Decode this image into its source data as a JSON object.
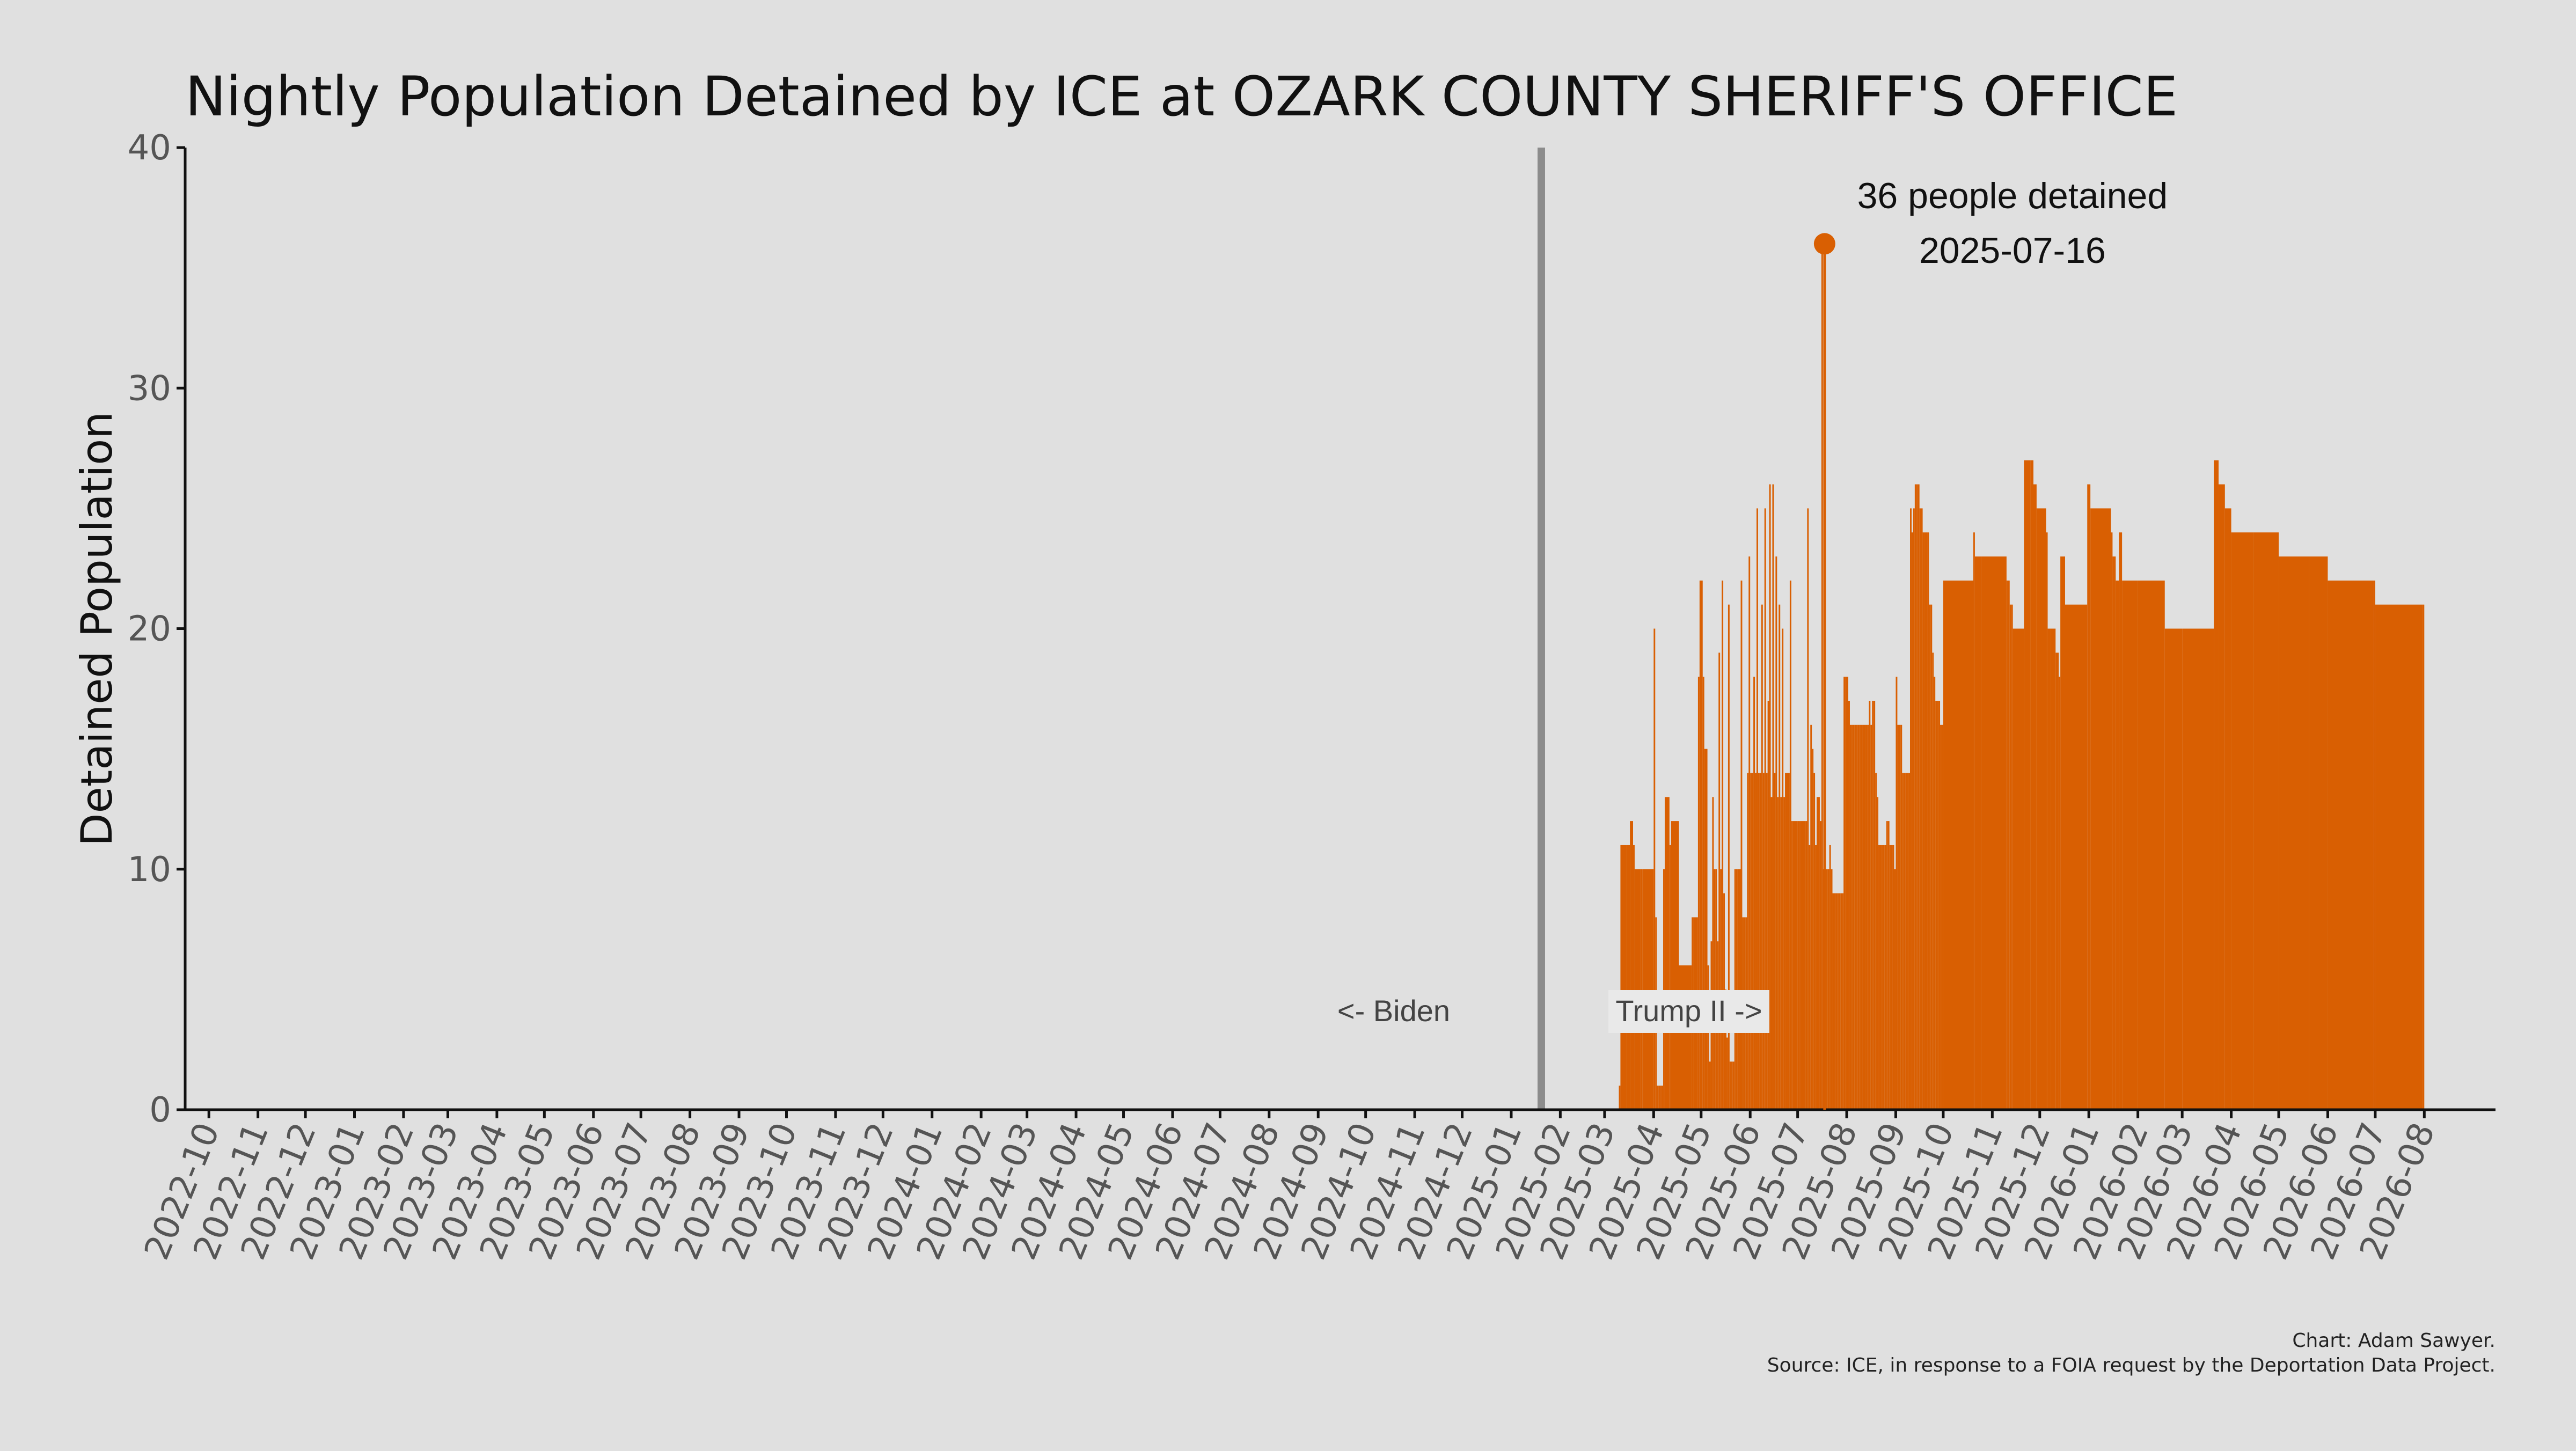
{
  "chart_data": {
    "type": "bar",
    "title": "Nightly Population Detained by ICE at OZARK COUNTY SHERIFF'S OFFICE",
    "xlabel": "",
    "ylabel": "Detained Population",
    "ylim": [
      0,
      40
    ],
    "y_ticks": [
      "0",
      "10",
      "20",
      "30",
      "40"
    ],
    "x_ticks": [
      "2022-10",
      "2022-11",
      "2022-12",
      "2023-01",
      "2023-02",
      "2023-03",
      "2023-04",
      "2023-05",
      "2023-06",
      "2023-07",
      "2023-08",
      "2023-09",
      "2023-10",
      "2023-11",
      "2023-12",
      "2024-01",
      "2024-02",
      "2024-03",
      "2024-04",
      "2024-05",
      "2024-06",
      "2024-07",
      "2024-08",
      "2024-09",
      "2024-10",
      "2024-11",
      "2024-12",
      "2025-01",
      "2025-02",
      "2025-03",
      "2025-04",
      "2025-05",
      "2025-06",
      "2025-07",
      "2025-08",
      "2025-09",
      "2025-10",
      "2025-11",
      "2025-12",
      "2026-01",
      "2026-02",
      "2026-03",
      "2026-04",
      "2026-05",
      "2026-06",
      "2026-07",
      "2026-08"
    ],
    "x_range": [
      "2022-10-01",
      "2026-08-31"
    ],
    "grid": false,
    "bar_color": "#d95f02",
    "divider": {
      "date": "2025-01-20",
      "color": "#8c8c8c",
      "left_label": "<- Biden",
      "right_label": "Trump II ->"
    },
    "peak": {
      "date": "2025-07-16",
      "value": 36,
      "label_line1": "36 people detained",
      "label_line2": "2025-07-16"
    },
    "series": [
      {
        "points": [
          [
            "2025-03-10",
            1
          ],
          [
            "2025-03-11",
            11
          ],
          [
            "2025-03-15",
            11
          ],
          [
            "2025-03-17",
            12
          ],
          [
            "2025-03-19",
            11
          ],
          [
            "2025-03-20",
            10
          ],
          [
            "2025-03-24",
            10
          ],
          [
            "2025-03-25",
            10
          ],
          [
            "2025-04-01",
            20
          ],
          [
            "2025-04-02",
            8
          ],
          [
            "2025-04-03",
            1
          ],
          [
            "2025-04-04",
            1
          ],
          [
            "2025-04-05",
            1
          ],
          [
            "2025-04-06",
            1
          ],
          [
            "2025-04-07",
            10
          ],
          [
            "2025-04-08",
            13
          ],
          [
            "2025-04-11",
            11
          ],
          [
            "2025-04-12",
            12
          ],
          [
            "2025-04-17",
            6
          ],
          [
            "2025-04-25",
            8
          ],
          [
            "2025-04-26",
            8
          ],
          [
            "2025-04-29",
            18
          ],
          [
            "2025-04-30",
            22
          ],
          [
            "2025-05-02",
            18
          ],
          [
            "2025-05-03",
            15
          ],
          [
            "2025-05-05",
            6
          ],
          [
            "2025-05-06",
            2
          ],
          [
            "2025-05-07",
            7
          ],
          [
            "2025-05-08",
            13
          ],
          [
            "2025-05-09",
            10
          ],
          [
            "2025-05-10",
            10
          ],
          [
            "2025-05-11",
            7
          ],
          [
            "2025-05-12",
            19
          ],
          [
            "2025-05-13",
            10
          ],
          [
            "2025-05-14",
            22
          ],
          [
            "2025-05-15",
            9
          ],
          [
            "2025-05-16",
            5
          ],
          [
            "2025-05-17",
            3
          ],
          [
            "2025-05-18",
            21
          ],
          [
            "2025-05-19",
            2
          ],
          [
            "2025-05-20",
            2
          ],
          [
            "2025-05-21",
            2
          ],
          [
            "2025-05-22",
            10
          ],
          [
            "2025-05-23",
            10
          ],
          [
            "2025-05-24",
            10
          ],
          [
            "2025-05-25",
            10
          ],
          [
            "2025-05-26",
            22
          ],
          [
            "2025-05-27",
            8
          ],
          [
            "2025-05-28",
            8
          ],
          [
            "2025-05-29",
            8
          ],
          [
            "2025-05-30",
            14
          ],
          [
            "2025-05-31",
            23
          ],
          [
            "2025-06-01",
            14
          ],
          [
            "2025-06-02",
            14
          ],
          [
            "2025-06-03",
            18
          ],
          [
            "2025-06-04",
            14
          ],
          [
            "2025-06-05",
            25
          ],
          [
            "2025-06-06",
            14
          ],
          [
            "2025-06-07",
            14
          ],
          [
            "2025-06-08",
            21
          ],
          [
            "2025-06-09",
            14
          ],
          [
            "2025-06-10",
            25
          ],
          [
            "2025-06-11",
            14
          ],
          [
            "2025-06-12",
            17
          ],
          [
            "2025-06-13",
            26
          ],
          [
            "2025-06-14",
            13
          ],
          [
            "2025-06-15",
            26
          ],
          [
            "2025-06-16",
            14
          ],
          [
            "2025-06-17",
            23
          ],
          [
            "2025-06-18",
            13
          ],
          [
            "2025-06-19",
            21
          ],
          [
            "2025-06-20",
            13
          ],
          [
            "2025-06-21",
            20
          ],
          [
            "2025-06-22",
            13
          ],
          [
            "2025-06-23",
            14
          ],
          [
            "2025-06-24",
            14
          ],
          [
            "2025-06-25",
            14
          ],
          [
            "2025-06-26",
            22
          ],
          [
            "2025-06-27",
            12
          ],
          [
            "2025-06-28",
            12
          ],
          [
            "2025-07-01",
            12
          ],
          [
            "2025-07-02",
            12
          ],
          [
            "2025-07-03",
            12
          ],
          [
            "2025-07-04",
            12
          ],
          [
            "2025-07-05",
            12
          ],
          [
            "2025-07-06",
            12
          ],
          [
            "2025-07-07",
            25
          ],
          [
            "2025-07-08",
            11
          ],
          [
            "2025-07-09",
            16
          ],
          [
            "2025-07-10",
            15
          ],
          [
            "2025-07-11",
            14
          ],
          [
            "2025-07-12",
            11
          ],
          [
            "2025-07-13",
            13
          ],
          [
            "2025-07-14",
            13
          ],
          [
            "2025-07-15",
            12
          ],
          [
            "2025-07-16",
            36
          ],
          [
            "2025-07-17",
            10
          ],
          [
            "2025-07-18",
            10
          ],
          [
            "2025-07-19",
            10
          ],
          [
            "2025-07-20",
            10
          ],
          [
            "2025-07-21",
            11
          ],
          [
            "2025-07-22",
            10
          ],
          [
            "2025-07-23",
            9
          ],
          [
            "2025-07-24",
            9
          ],
          [
            "2025-07-25",
            9
          ],
          [
            "2025-07-26",
            9
          ],
          [
            "2025-07-27",
            9
          ],
          [
            "2025-07-28",
            9
          ],
          [
            "2025-07-29",
            9
          ],
          [
            "2025-07-30",
            18
          ],
          [
            "2025-07-31",
            18
          ],
          [
            "2025-08-01",
            18
          ],
          [
            "2025-08-02",
            17
          ],
          [
            "2025-08-03",
            16
          ],
          [
            "2025-08-04",
            16
          ],
          [
            "2025-08-05",
            16
          ],
          [
            "2025-08-06",
            16
          ],
          [
            "2025-08-07",
            16
          ],
          [
            "2025-08-08",
            16
          ],
          [
            "2025-08-09",
            16
          ],
          [
            "2025-08-10",
            16
          ],
          [
            "2025-08-11",
            16
          ],
          [
            "2025-08-12",
            16
          ],
          [
            "2025-08-13",
            16
          ],
          [
            "2025-08-14",
            16
          ],
          [
            "2025-08-15",
            17
          ],
          [
            "2025-08-16",
            16
          ],
          [
            "2025-08-17",
            17
          ],
          [
            "2025-08-18",
            17
          ],
          [
            "2025-08-19",
            14
          ],
          [
            "2025-08-20",
            13
          ],
          [
            "2025-08-21",
            11
          ],
          [
            "2025-08-22",
            11
          ],
          [
            "2025-08-23",
            11
          ],
          [
            "2025-08-24",
            11
          ],
          [
            "2025-08-25",
            11
          ],
          [
            "2025-08-26",
            12
          ],
          [
            "2025-08-27",
            12
          ],
          [
            "2025-08-28",
            11
          ],
          [
            "2025-08-29",
            11
          ],
          [
            "2025-08-30",
            11
          ],
          [
            "2025-08-31",
            10
          ],
          [
            "2025-09-01",
            18
          ],
          [
            "2025-09-02",
            16
          ],
          [
            "2025-09-03",
            16
          ],
          [
            "2025-09-04",
            16
          ],
          [
            "2025-09-05",
            14
          ],
          [
            "2025-09-06",
            14
          ],
          [
            "2025-09-07",
            14
          ],
          [
            "2025-09-08",
            14
          ],
          [
            "2025-09-09",
            14
          ],
          [
            "2025-09-10",
            25
          ],
          [
            "2025-09-11",
            24
          ],
          [
            "2025-09-12",
            25
          ],
          [
            "2025-09-13",
            26
          ],
          [
            "2025-09-14",
            26
          ],
          [
            "2025-09-15",
            26
          ],
          [
            "2025-09-16",
            25
          ],
          [
            "2025-09-17",
            25
          ],
          [
            "2025-09-18",
            24
          ],
          [
            "2025-09-19",
            24
          ],
          [
            "2025-09-20",
            24
          ],
          [
            "2025-09-21",
            24
          ],
          [
            "2025-09-22",
            21
          ],
          [
            "2025-09-23",
            21
          ],
          [
            "2025-09-24",
            19
          ],
          [
            "2025-09-25",
            18
          ],
          [
            "2025-09-26",
            17
          ],
          [
            "2025-09-27",
            17
          ],
          [
            "2025-09-28",
            17
          ],
          [
            "2025-09-29",
            16
          ],
          [
            "2025-09-30",
            16
          ],
          [
            "2025-10-01",
            22
          ],
          [
            "2025-10-20",
            24
          ],
          [
            "2025-10-21",
            23
          ],
          [
            "2025-10-25",
            23
          ],
          [
            "2025-11-10",
            22
          ],
          [
            "2025-11-11",
            22
          ],
          [
            "2025-11-12",
            21
          ],
          [
            "2025-11-13",
            21
          ],
          [
            "2025-11-14",
            20
          ],
          [
            "2025-11-21",
            27
          ],
          [
            "2025-11-25",
            27
          ],
          [
            "2025-11-27",
            26
          ],
          [
            "2025-11-29",
            25
          ],
          [
            "2025-12-05",
            24
          ],
          [
            "2025-12-06",
            20
          ],
          [
            "2025-12-08",
            20
          ],
          [
            "2025-12-11",
            19
          ],
          [
            "2025-12-13",
            18
          ],
          [
            "2025-12-14",
            23
          ],
          [
            "2025-12-17",
            21
          ],
          [
            "2025-12-31",
            26
          ],
          [
            "2026-01-02",
            25
          ],
          [
            "2026-01-15",
            24
          ],
          [
            "2026-01-16",
            23
          ],
          [
            "2026-01-18",
            22
          ],
          [
            "2026-01-20",
            24
          ],
          [
            "2026-01-22",
            22
          ],
          [
            "2026-02-01",
            22
          ],
          [
            "2026-02-18",
            20
          ],
          [
            "2026-03-01",
            20
          ],
          [
            "2026-03-21",
            27
          ],
          [
            "2026-03-24",
            26
          ],
          [
            "2026-03-28",
            25
          ],
          [
            "2026-04-01",
            24
          ],
          [
            "2026-04-15",
            24
          ],
          [
            "2026-05-01",
            23
          ],
          [
            "2026-05-20",
            23
          ],
          [
            "2026-06-01",
            22
          ],
          [
            "2026-06-30",
            22
          ],
          [
            "2026-07-01",
            21
          ],
          [
            "2026-07-31",
            21
          ]
        ]
      }
    ]
  },
  "credits": {
    "line1": "Chart: Adam Sawyer.",
    "line2": "Source: ICE, in response to a FOIA request by the Deportation Data Project."
  }
}
